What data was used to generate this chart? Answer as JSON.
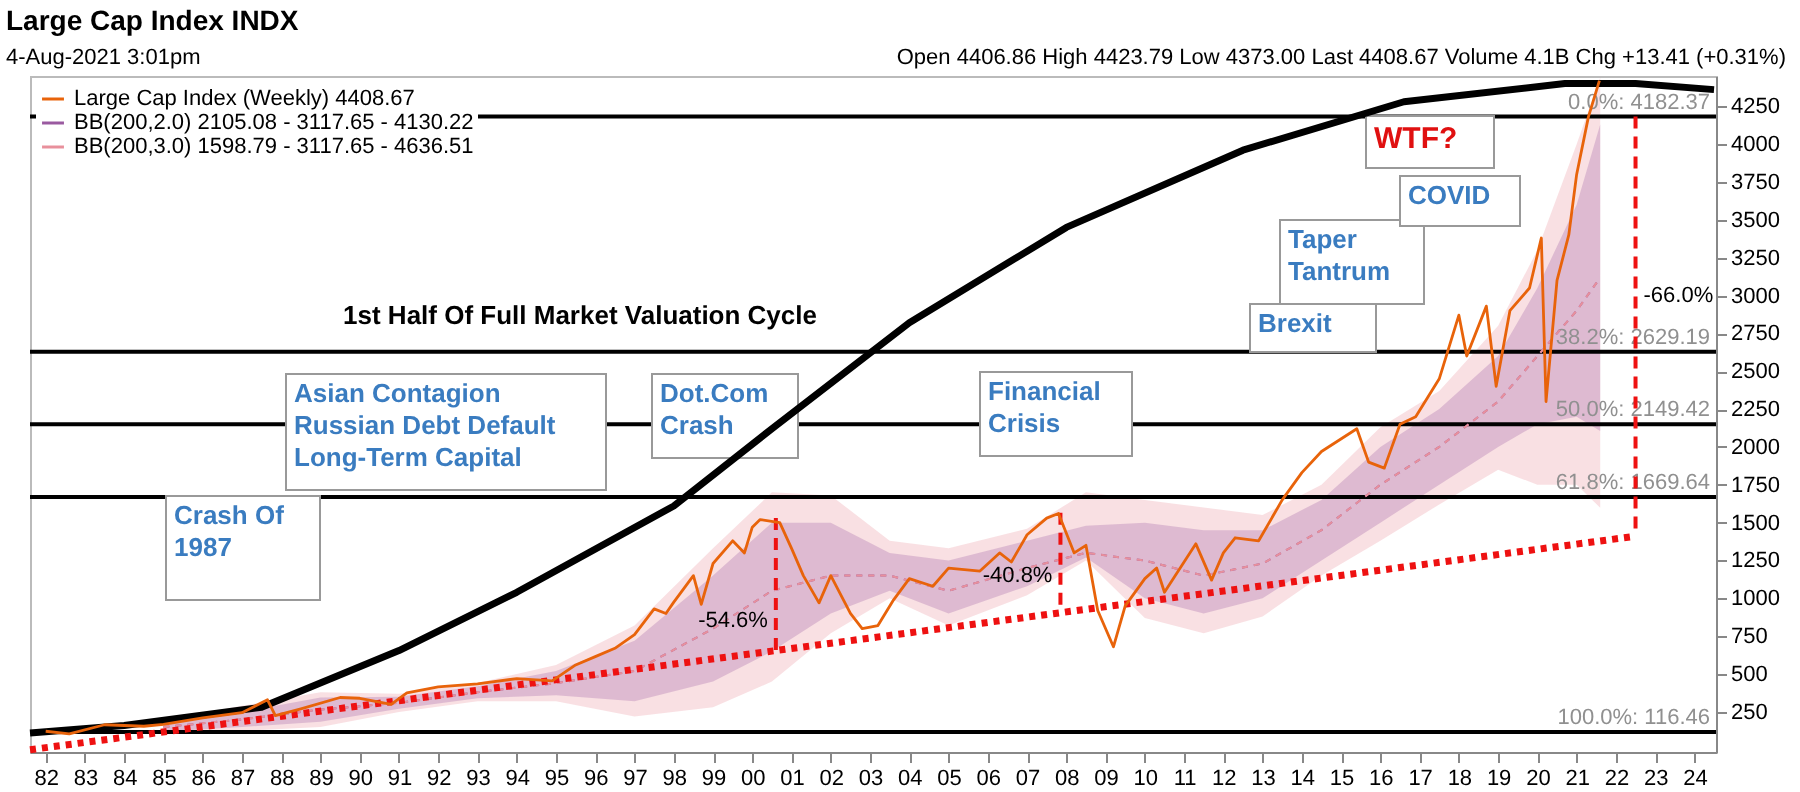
{
  "chart_data": {
    "type": "line",
    "title": "Large Cap Index INDX",
    "subtitle": "4-Aug-2021 3:01pm",
    "xlim": [
      1981.6,
      2024.55
    ],
    "ylim": [
      -15,
      4450
    ],
    "xticks": [
      {
        "value": 1982,
        "label": "82"
      },
      {
        "value": 1983,
        "label": "83"
      },
      {
        "value": 1984,
        "label": "84"
      },
      {
        "value": 1985,
        "label": "85"
      },
      {
        "value": 1986,
        "label": "86"
      },
      {
        "value": 1987,
        "label": "87"
      },
      {
        "value": 1988,
        "label": "88"
      },
      {
        "value": 1989,
        "label": "89"
      },
      {
        "value": 1990,
        "label": "90"
      },
      {
        "value": 1991,
        "label": "91"
      },
      {
        "value": 1992,
        "label": "92"
      },
      {
        "value": 1993,
        "label": "93"
      },
      {
        "value": 1994,
        "label": "94"
      },
      {
        "value": 1995,
        "label": "95"
      },
      {
        "value": 1996,
        "label": "96"
      },
      {
        "value": 1997,
        "label": "97"
      },
      {
        "value": 1998,
        "label": "98"
      },
      {
        "value": 1999,
        "label": "99"
      },
      {
        "value": 2000,
        "label": "00"
      },
      {
        "value": 2001,
        "label": "01"
      },
      {
        "value": 2002,
        "label": "02"
      },
      {
        "value": 2003,
        "label": "03"
      },
      {
        "value": 2004,
        "label": "04"
      },
      {
        "value": 2005,
        "label": "05"
      },
      {
        "value": 2006,
        "label": "06"
      },
      {
        "value": 2007,
        "label": "07"
      },
      {
        "value": 2008,
        "label": "08"
      },
      {
        "value": 2009,
        "label": "09"
      },
      {
        "value": 2010,
        "label": "10"
      },
      {
        "value": 2011,
        "label": "11"
      },
      {
        "value": 2012,
        "label": "12"
      },
      {
        "value": 2013,
        "label": "13"
      },
      {
        "value": 2014,
        "label": "14"
      },
      {
        "value": 2015,
        "label": "15"
      },
      {
        "value": 2016,
        "label": "16"
      },
      {
        "value": 2017,
        "label": "17"
      },
      {
        "value": 2018,
        "label": "18"
      },
      {
        "value": 2019,
        "label": "19"
      },
      {
        "value": 2020,
        "label": "20"
      },
      {
        "value": 2021,
        "label": "21"
      },
      {
        "value": 2022,
        "label": "22"
      },
      {
        "value": 2023,
        "label": "23"
      },
      {
        "value": 2024,
        "label": "24"
      }
    ],
    "yticks": [
      250,
      500,
      750,
      1000,
      1250,
      1500,
      1750,
      2000,
      2250,
      2500,
      2750,
      3000,
      3250,
      3500,
      3750,
      4000,
      4250
    ],
    "grid": false,
    "legend": "top left",
    "series": [
      {
        "name": "Large Cap Index (Weekly) 4408.67",
        "color": "#e8630a",
        "x": [
          1982.0,
          1982.6,
          1983.5,
          1984.5,
          1985.0,
          1986.0,
          1987.0,
          1987.65,
          1987.85,
          1988.5,
          1989.5,
          1990.0,
          1990.8,
          1991.2,
          1992.0,
          1993.0,
          1994.0,
          1994.9,
          1995.5,
          1996.0,
          1996.5,
          1997.0,
          1997.5,
          1997.8,
          1998.0,
          1998.5,
          1998.7,
          1999.0,
          1999.5,
          1999.8,
          2000.0,
          2000.2,
          2000.7,
          2001.0,
          2001.3,
          2001.7,
          2002.0,
          2002.5,
          2002.8,
          2003.2,
          2003.6,
          2004.0,
          2004.6,
          2005.0,
          2005.8,
          2006.3,
          2006.6,
          2007.0,
          2007.5,
          2007.8,
          2008.2,
          2008.5,
          2008.8,
          2009.2,
          2009.5,
          2010.0,
          2010.3,
          2010.5,
          2011.3,
          2011.7,
          2012.0,
          2012.3,
          2012.9,
          2013.5,
          2014.0,
          2014.5,
          2015.4,
          2015.7,
          2016.1,
          2016.5,
          2016.9,
          2017.5,
          2018.0,
          2018.2,
          2018.7,
          2018.95,
          2019.3,
          2019.8,
          2020.1,
          2020.22,
          2020.5,
          2020.8,
          2021.0,
          2021.3,
          2021.58
        ],
        "values": [
          122,
          105,
          165,
          155,
          168,
          210,
          245,
          330,
          225,
          270,
          345,
          340,
          300,
          375,
          415,
          435,
          470,
          455,
          560,
          615,
          670,
          760,
          930,
          900,
          975,
          1150,
          960,
          1230,
          1380,
          1300,
          1470,
          1520,
          1500,
          1330,
          1150,
          970,
          1150,
          900,
          800,
          820,
          990,
          1130,
          1080,
          1200,
          1180,
          1300,
          1240,
          1420,
          1530,
          1560,
          1300,
          1350,
          920,
          680,
          950,
          1130,
          1200,
          1040,
          1360,
          1120,
          1300,
          1400,
          1380,
          1650,
          1830,
          1970,
          2120,
          1900,
          1860,
          2150,
          2200,
          2450,
          2870,
          2600,
          2930,
          2400,
          2900,
          3050,
          3380,
          2300,
          3100,
          3400,
          3800,
          4180,
          4420
        ]
      },
      {
        "name": "BB(200,2.0) 2105.08 - 3117.65 - 4130.22",
        "color": "#9a5aa0",
        "line_style": "dotted",
        "x": [
          1985,
          1987,
          1989,
          1991,
          1993,
          1995,
          1997,
          1999,
          2000.5,
          2002,
          2003.5,
          2005,
          2007,
          2008.5,
          2010,
          2011.5,
          2013,
          2014.5,
          2016,
          2017.5,
          2019,
          2020,
          2021,
          2021.6
        ],
        "values": [
          150,
          200,
          265,
          310,
          380,
          440,
          520,
          800,
          1050,
          1150,
          1150,
          1050,
          1200,
          1300,
          1250,
          1150,
          1230,
          1450,
          1750,
          2000,
          2300,
          2600,
          2900,
          3118
        ],
        "lower": [
          120,
          150,
          185,
          270,
          340,
          360,
          320,
          450,
          650,
          900,
          1050,
          900,
          1080,
          1270,
          1000,
          900,
          1000,
          1250,
          1500,
          1750,
          2000,
          2150,
          2200,
          2105
        ],
        "upper": [
          180,
          250,
          345,
          350,
          420,
          520,
          720,
          1150,
          1500,
          1500,
          1300,
          1250,
          1380,
          1480,
          1500,
          1450,
          1450,
          1650,
          2000,
          2250,
          2600,
          3050,
          3600,
          4130
        ]
      },
      {
        "name": "BB(200,3.0) 1598.79 - 3117.65 - 4636.51",
        "color": "#e8909c",
        "line_style": "dotted",
        "x": [
          1985,
          1987,
          1989,
          1991,
          1993,
          1995,
          1997,
          1999,
          2000.5,
          2002,
          2003.5,
          2005,
          2007,
          2008.5,
          2010,
          2011.5,
          2013,
          2014.5,
          2016,
          2017.5,
          2019,
          2020,
          2021,
          2021.6
        ],
        "values": [
          150,
          200,
          265,
          310,
          380,
          440,
          520,
          800,
          1050,
          1150,
          1150,
          1050,
          1200,
          1300,
          1250,
          1150,
          1230,
          1450,
          1750,
          2000,
          2300,
          2600,
          2900,
          3118
        ],
        "lower": [
          105,
          125,
          150,
          250,
          320,
          320,
          220,
          280,
          450,
          770,
          1000,
          820,
          1020,
          1250,
          870,
          770,
          880,
          1150,
          1380,
          1620,
          1850,
          1750,
          1750,
          1599
        ],
        "upper": [
          195,
          290,
          380,
          370,
          440,
          560,
          820,
          1330,
          1700,
          1680,
          1380,
          1330,
          1460,
          1700,
          1650,
          1600,
          1550,
          1750,
          2130,
          2370,
          2800,
          3300,
          4000,
          4440
        ]
      },
      {
        "color": "#000000",
        "x": [
          1981.6,
          1984,
          1987.5,
          1991,
          1994,
          1998,
          2000.5,
          2004,
          2008,
          2012.5,
          2016.6,
          2020.7,
          2022.5,
          2024.5
        ],
        "values": [
          110,
          160,
          280,
          655,
          1040,
          1610,
          2120,
          2820,
          3450,
          3960,
          4280,
          4400,
          4400,
          4360
        ]
      },
      {
        "color": "#ee1111",
        "line_style": "dotted",
        "x": [
          1981.6,
          2022.5
        ],
        "values": [
          0,
          1410
        ]
      },
      {
        "color": "#ee1111",
        "line_style": "dashed",
        "x": [
          2000.6,
          2000.6
        ],
        "values": [
          1530,
          655
        ]
      },
      {
        "color": "#ee1111",
        "line_style": "dashed",
        "x": [
          2007.85,
          2007.85
        ],
        "values": [
          1565,
          905
        ]
      },
      {
        "color": "#ee1111",
        "line_style": "dashed",
        "x": [
          2022.5,
          2022.5
        ],
        "values": [
          4182,
          1410
        ]
      }
    ],
    "ref_lines": [
      {
        "axis": "y",
        "value": 4182.37,
        "label": "0.0%: 4182.37",
        "color": "#000000"
      },
      {
        "axis": "y",
        "value": 2629.19,
        "label": "38.2%: 2629.19",
        "color": "#000000"
      },
      {
        "axis": "y",
        "value": 2149.42,
        "label": "50.0%: 2149.42",
        "color": "#000000"
      },
      {
        "axis": "y",
        "value": 1669.64,
        "label": "61.8%: 1669.64",
        "color": "#000000"
      },
      {
        "axis": "y",
        "value": 116.46,
        "label": "100.0%: 116.46",
        "color": "#000000"
      }
    ],
    "annotations": [
      "1st Half Of Full Market Valuation Cycle",
      "Crash Of\n1987",
      "Asian Contagion\nRussian Debt Default\nLong-Term Capital",
      "Dot.Com\nCrash",
      "Financial\nCrisis",
      "Brexit",
      "Taper\nTantrum",
      "COVID",
      "WTF?",
      "Open 4406.86 High 4423.79 Low 4373.00 Last 4408.67 Volume 4.1B Chg +13.41 (+0.31%)",
      {
        "text": "-54.6%",
        "x": 2000.6,
        "y": 850
      },
      {
        "text": "-40.8%",
        "x": 2007.85,
        "y": 1150
      },
      {
        "text": "-66.0%",
        "x": 2022.5,
        "y": 3000
      }
    ]
  }
}
